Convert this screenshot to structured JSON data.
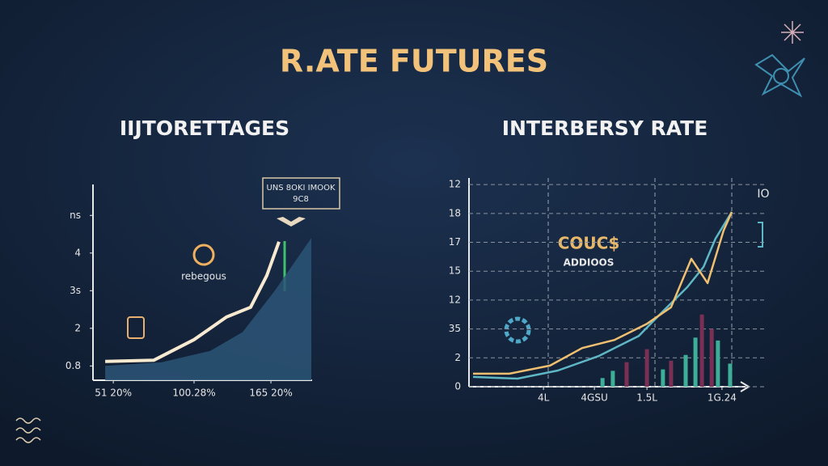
{
  "title": "R.ATE FUTURES",
  "chart_data": [
    {
      "type": "area",
      "subtitle": "IIJTORETTAGES",
      "xlim": [
        0,
        100
      ],
      "ylim": [
        0.62,
        5.78
      ],
      "xticks": [
        {
          "value": 9.3,
          "label": "51 20%"
        },
        {
          "value": 46.3,
          "label": "100.28%"
        },
        {
          "value": 81.5,
          "label": "165 20%"
        }
      ],
      "yticks": [
        {
          "value": 5,
          "label": "ns"
        },
        4,
        {
          "value": 3,
          "label": "3s"
        },
        2,
        {
          "value": 1,
          "label": "0.8"
        }
      ],
      "series": [
        {
          "fill": true,
          "color": "#2b5577",
          "x": [
            5.6,
            31.5,
            53.7,
            68.5,
            83.3,
            100
          ],
          "values": [
            1.0,
            1.1,
            1.4,
            1.9,
            3.0,
            4.4
          ]
        },
        {
          "fill": false,
          "color": "#f7ead0",
          "x": [
            5.6,
            27.8,
            46.3,
            61.1,
            72.2,
            79.6,
            85.2
          ],
          "values": [
            1.12,
            1.15,
            1.7,
            2.3,
            2.56,
            3.4,
            4.3
          ]
        }
      ],
      "annotations": [
        "UNS 8OKI IMOOK",
        "9C8",
        "rebegous"
      ]
    },
    {
      "type": "line",
      "subtitle": "INTERBERSY RATE",
      "grid": true,
      "xlim": [
        0,
        100
      ],
      "ylim": [
        0,
        7.2
      ],
      "xticks": [
        {
          "value": 27.5,
          "label": "4L"
        },
        {
          "value": 46.3,
          "label": "4GSU"
        },
        {
          "value": 65.7,
          "label": "1.5L"
        },
        {
          "value": 93.4,
          "label": "1G.24"
        }
      ],
      "yticks": [
        0,
        {
          "value": 1,
          "label": "2"
        },
        {
          "value": 2,
          "label": "35"
        },
        {
          "value": 3,
          "label": "12"
        },
        {
          "value": 4,
          "label": "15"
        },
        {
          "value": 5,
          "label": "17"
        },
        {
          "value": 6,
          "label": "18"
        },
        {
          "value": 7,
          "label": "12"
        }
      ],
      "series": [
        {
          "style": "bar",
          "color": "#3fae98",
          "x": [
            49.3,
            53.1,
            71.6,
            80.0,
            83.6,
            91.9,
            96.4
          ],
          "values": [
            0.3,
            0.55,
            0.6,
            1.1,
            1.7,
            1.6,
            0.8
          ]
        },
        {
          "style": "bar",
          "color": "#7a2f55",
          "x": [
            58.2,
            65.7,
            74.6,
            86.0,
            89.6
          ],
          "values": [
            0.85,
            1.3,
            0.9,
            2.5,
            2.0
          ]
        },
        {
          "style": "line",
          "color": "#5fb6c4",
          "x": [
            1.5,
            17.9,
            32.8,
            47.8,
            62.7,
            71.6,
            80.6,
            86.6,
            91.0,
            97.0
          ],
          "values": [
            0.34,
            0.28,
            0.56,
            1.06,
            1.76,
            2.61,
            3.45,
            4.15,
            5.13,
            6.05
          ]
        },
        {
          "style": "line",
          "color": "#f0c070",
          "x": [
            1.5,
            14.9,
            29.9,
            41.8,
            53.7,
            65.7,
            74.6,
            82.1,
            88.1,
            94.0,
            97.0
          ],
          "values": [
            0.45,
            0.45,
            0.73,
            1.34,
            1.62,
            2.18,
            2.75,
            4.43,
            3.59,
            5.41,
            6.05
          ]
        }
      ],
      "annotations": [
        "COUC$",
        "ADDIOOS",
        "IO"
      ]
    }
  ]
}
